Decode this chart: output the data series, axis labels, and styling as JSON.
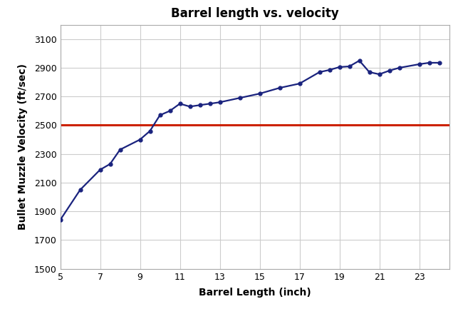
{
  "title": "Barrel length vs. velocity",
  "xlabel": "Barrel Length (inch)",
  "ylabel": "Bullet Muzzle Velocity (ft/sec)",
  "x": [
    5,
    6,
    7,
    7.5,
    8,
    9,
    9.5,
    10,
    10.5,
    11,
    11.5,
    12,
    12.5,
    13,
    14,
    15,
    16,
    17,
    18,
    18.5,
    19,
    19.5,
    20,
    20.5,
    21,
    21.5,
    22,
    23,
    23.5,
    24
  ],
  "y": [
    1840,
    2050,
    2190,
    2230,
    2330,
    2400,
    2460,
    2570,
    2600,
    2650,
    2630,
    2640,
    2650,
    2660,
    2690,
    2720,
    2760,
    2790,
    2870,
    2885,
    2905,
    2910,
    2950,
    2870,
    2855,
    2880,
    2900,
    2925,
    2935,
    2935
  ],
  "hline_y": 2500,
  "hline_color": "#cc2200",
  "line_color": "#1a237e",
  "marker_color": "#1a237e",
  "xlim": [
    5,
    24.5
  ],
  "ylim": [
    1500,
    3200
  ],
  "xticks": [
    5,
    7,
    9,
    11,
    13,
    15,
    17,
    19,
    21,
    23
  ],
  "yticks": [
    1500,
    1700,
    1900,
    2100,
    2300,
    2500,
    2700,
    2900,
    3100
  ],
  "background_color": "#ffffff",
  "grid_color": "#cccccc",
  "title_fontsize": 12,
  "label_fontsize": 10,
  "tick_fontsize": 9
}
